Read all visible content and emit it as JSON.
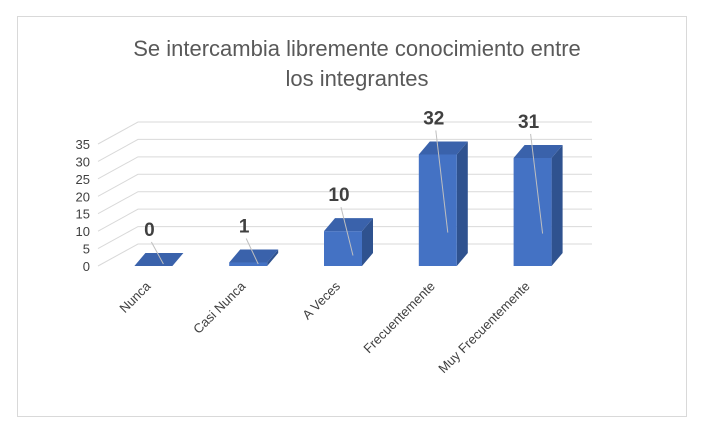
{
  "chart_data": {
    "type": "bar",
    "title": "Se intercambia libremente conocimiento entre los integrantes",
    "title_lines": [
      "Se intercambia libremente conocimiento entre",
      "los integrantes"
    ],
    "categories": [
      "Nunca",
      "Casi Nunca",
      "A Veces",
      "Frecuentemente",
      "Muy Frecuentemente"
    ],
    "values": [
      0,
      1,
      10,
      32,
      31
    ],
    "ylim": [
      0,
      35
    ],
    "yticks": [
      "0",
      "5",
      "10",
      "15",
      "20",
      "25",
      "30",
      "35"
    ],
    "xlabel": "",
    "ylabel": "",
    "grid": true,
    "style": "3d-column",
    "data_labels": [
      "0",
      "1",
      "10",
      "32",
      "31"
    ],
    "colors": {
      "front": "#4472c4",
      "side": "#2f528f",
      "top": "#3a62ab",
      "grid": "#d9d9d9",
      "text": "#404040",
      "title": "#595959"
    }
  }
}
